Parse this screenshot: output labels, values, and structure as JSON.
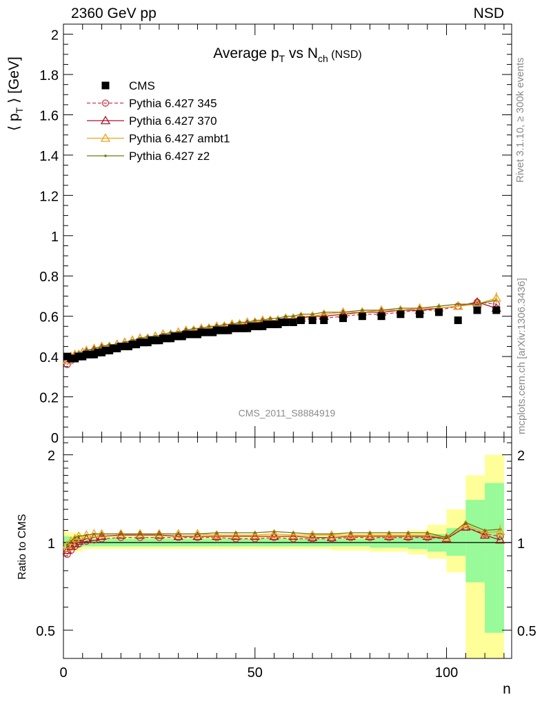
{
  "header": {
    "left": "2360 GeV pp",
    "right": "NSD"
  },
  "side_labels": {
    "rivet": "Rivet 3.1.10, ≥ 300k events",
    "mcplots": "mcplots.cern.ch [arXiv:1306.3436]"
  },
  "watermark": "CMS_2011_S8884919",
  "chart_data": [
    {
      "type": "scatter",
      "title": "Average p_T vs N_ch (NSD)",
      "title_parts": {
        "main": "Average p",
        "sub1": "T",
        "mid": " vs N",
        "sub2": "ch",
        "tail": " (NSD)"
      },
      "ylabel": "⟨ p_T ⟩ [GeV]",
      "ylabel_parts": {
        "pre": "⟨ p",
        "sub": "T",
        "post": " ⟩ [GeV]"
      },
      "xlim": [
        0,
        117
      ],
      "ylim": [
        0,
        2.05
      ],
      "yticks": [
        0,
        0.2,
        0.4,
        0.6,
        0.8,
        1,
        1.2,
        1.4,
        1.6,
        1.8,
        2
      ],
      "ytick_labels": [
        "0",
        "0.2",
        "0.4",
        "0.6",
        "0.8",
        "1",
        "1.2",
        "1.4",
        "1.6",
        "1.8",
        "2"
      ],
      "legend_position": "top-left",
      "series": [
        {
          "name": "CMS",
          "color": "#000000",
          "marker": "square",
          "x": [
            1,
            2,
            3,
            4,
            5,
            6,
            7,
            8,
            9,
            10,
            11,
            12,
            13,
            14,
            15,
            16,
            17,
            18,
            19,
            20,
            21,
            22,
            23,
            24,
            25,
            26,
            27,
            28,
            29,
            30,
            31,
            32,
            33,
            34,
            35,
            36,
            37,
            38,
            39,
            40,
            41,
            42,
            43,
            44,
            45,
            46,
            47,
            48,
            49,
            50,
            51,
            52,
            53,
            54,
            55,
            56,
            57,
            58,
            60,
            62,
            65,
            68,
            73,
            78,
            83,
            88,
            93,
            98,
            103,
            108,
            113
          ],
          "y": [
            0.4,
            0.39,
            0.39,
            0.4,
            0.4,
            0.41,
            0.41,
            0.41,
            0.42,
            0.42,
            0.43,
            0.43,
            0.44,
            0.44,
            0.45,
            0.45,
            0.45,
            0.46,
            0.46,
            0.47,
            0.47,
            0.47,
            0.48,
            0.48,
            0.48,
            0.49,
            0.49,
            0.49,
            0.5,
            0.5,
            0.5,
            0.51,
            0.51,
            0.51,
            0.51,
            0.52,
            0.52,
            0.52,
            0.52,
            0.53,
            0.53,
            0.53,
            0.53,
            0.54,
            0.54,
            0.54,
            0.54,
            0.54,
            0.55,
            0.55,
            0.55,
            0.55,
            0.56,
            0.56,
            0.56,
            0.56,
            0.57,
            0.57,
            0.57,
            0.58,
            0.58,
            0.58,
            0.59,
            0.6,
            0.6,
            0.61,
            0.61,
            0.62,
            0.58,
            0.63,
            0.63
          ]
        },
        {
          "name": "Pythia 6.427 345",
          "color": "#c8364c",
          "marker": "circle",
          "dashed": true,
          "x": [
            1,
            2,
            3,
            4,
            5,
            6,
            8,
            10,
            12,
            14,
            16,
            18,
            20,
            22,
            24,
            26,
            28,
            30,
            32,
            34,
            36,
            38,
            40,
            42,
            44,
            46,
            48,
            50,
            52,
            54,
            56,
            58,
            60,
            62,
            65,
            68,
            73,
            78,
            83,
            88,
            93,
            98,
            103,
            108,
            113
          ],
          "y": [
            0.36,
            0.38,
            0.39,
            0.4,
            0.4,
            0.41,
            0.42,
            0.43,
            0.44,
            0.45,
            0.46,
            0.47,
            0.48,
            0.48,
            0.49,
            0.5,
            0.5,
            0.51,
            0.52,
            0.52,
            0.53,
            0.53,
            0.54,
            0.54,
            0.55,
            0.55,
            0.56,
            0.56,
            0.56,
            0.57,
            0.57,
            0.58,
            0.58,
            0.58,
            0.59,
            0.59,
            0.6,
            0.61,
            0.61,
            0.62,
            0.63,
            0.63,
            0.65,
            0.67,
            0.66
          ]
        },
        {
          "name": "Pythia 6.427 370",
          "color": "#a8162c",
          "marker": "triangle",
          "x": [
            1,
            2,
            3,
            4,
            5,
            6,
            8,
            10,
            12,
            14,
            16,
            18,
            20,
            22,
            24,
            26,
            28,
            30,
            32,
            34,
            36,
            38,
            40,
            42,
            44,
            46,
            48,
            50,
            52,
            54,
            56,
            58,
            60,
            62,
            65,
            68,
            73,
            78,
            83,
            88,
            93,
            98,
            103,
            108,
            113
          ],
          "y": [
            0.38,
            0.39,
            0.4,
            0.41,
            0.42,
            0.42,
            0.43,
            0.44,
            0.45,
            0.46,
            0.47,
            0.48,
            0.49,
            0.49,
            0.5,
            0.51,
            0.51,
            0.52,
            0.52,
            0.53,
            0.53,
            0.54,
            0.54,
            0.55,
            0.55,
            0.56,
            0.56,
            0.57,
            0.57,
            0.57,
            0.58,
            0.58,
            0.59,
            0.59,
            0.6,
            0.6,
            0.61,
            0.62,
            0.62,
            0.63,
            0.63,
            0.64,
            0.65,
            0.67,
            0.64
          ]
        },
        {
          "name": "Pythia 6.427 ambt1",
          "color": "#f0a218",
          "marker": "triangle",
          "x": [
            1,
            2,
            3,
            4,
            5,
            6,
            8,
            10,
            12,
            14,
            16,
            18,
            20,
            22,
            24,
            26,
            28,
            30,
            32,
            34,
            36,
            38,
            40,
            42,
            44,
            46,
            48,
            50,
            52,
            54,
            56,
            58,
            60,
            62,
            65,
            68,
            73,
            78,
            83,
            88,
            93,
            98,
            103,
            108,
            113
          ],
          "y": [
            0.38,
            0.4,
            0.41,
            0.41,
            0.42,
            0.43,
            0.44,
            0.45,
            0.45,
            0.46,
            0.47,
            0.48,
            0.49,
            0.49,
            0.5,
            0.51,
            0.51,
            0.52,
            0.53,
            0.53,
            0.54,
            0.54,
            0.55,
            0.55,
            0.56,
            0.56,
            0.57,
            0.57,
            0.58,
            0.58,
            0.58,
            0.59,
            0.59,
            0.6,
            0.6,
            0.61,
            0.62,
            0.62,
            0.63,
            0.63,
            0.64,
            0.64,
            0.65,
            0.66,
            0.69
          ]
        },
        {
          "name": "Pythia 6.427 z2",
          "color": "#6e7a10",
          "marker": "dot",
          "x": [
            1,
            2,
            3,
            4,
            5,
            6,
            8,
            10,
            12,
            14,
            16,
            18,
            20,
            22,
            24,
            26,
            28,
            30,
            32,
            34,
            36,
            38,
            40,
            42,
            44,
            46,
            48,
            50,
            52,
            54,
            56,
            58,
            60,
            62,
            65,
            68,
            73,
            78,
            83,
            88,
            93,
            98,
            103,
            108,
            113
          ],
          "y": [
            0.39,
            0.4,
            0.41,
            0.42,
            0.42,
            0.43,
            0.44,
            0.45,
            0.46,
            0.46,
            0.47,
            0.48,
            0.49,
            0.5,
            0.5,
            0.51,
            0.52,
            0.52,
            0.53,
            0.54,
            0.54,
            0.55,
            0.55,
            0.56,
            0.56,
            0.57,
            0.57,
            0.58,
            0.58,
            0.59,
            0.59,
            0.6,
            0.6,
            0.61,
            0.61,
            0.62,
            0.62,
            0.63,
            0.63,
            0.64,
            0.64,
            0.65,
            0.66,
            0.66,
            0.68
          ]
        }
      ]
    },
    {
      "type": "line",
      "ylabel": "Ratio to CMS",
      "xlabel": "n",
      "xlim": [
        0,
        117
      ],
      "ylim": [
        0.4,
        2.3
      ],
      "log_y": true,
      "yticks": [
        0.5,
        1,
        2
      ],
      "ytick_labels": [
        "0.5",
        "1",
        "2"
      ],
      "xticks": [
        0,
        50,
        100
      ],
      "xtick_labels": [
        "0",
        "50",
        "100"
      ],
      "bands": {
        "bins": [
          [
            0,
            2
          ],
          [
            2,
            5
          ],
          [
            5,
            10
          ],
          [
            10,
            20
          ],
          [
            20,
            30
          ],
          [
            30,
            40
          ],
          [
            40,
            50
          ],
          [
            50,
            60
          ],
          [
            60,
            70
          ],
          [
            70,
            80
          ],
          [
            80,
            90
          ],
          [
            90,
            95
          ],
          [
            95,
            100
          ],
          [
            100,
            105
          ],
          [
            105,
            110
          ],
          [
            110,
            115
          ]
        ],
        "inner": [
          [
            0.95,
            1.05
          ],
          [
            0.96,
            1.04
          ],
          [
            0.97,
            1.03
          ],
          [
            0.97,
            1.03
          ],
          [
            0.97,
            1.03
          ],
          [
            0.97,
            1.03
          ],
          [
            0.97,
            1.03
          ],
          [
            0.97,
            1.03
          ],
          [
            0.97,
            1.03
          ],
          [
            0.97,
            1.03
          ],
          [
            0.96,
            1.04
          ],
          [
            0.95,
            1.05
          ],
          [
            0.93,
            1.07
          ],
          [
            0.9,
            1.12
          ],
          [
            0.73,
            1.4
          ],
          [
            0.49,
            1.6
          ]
        ],
        "outer": [
          [
            0.92,
            1.09
          ],
          [
            0.93,
            1.08
          ],
          [
            0.95,
            1.06
          ],
          [
            0.95,
            1.06
          ],
          [
            0.95,
            1.06
          ],
          [
            0.95,
            1.06
          ],
          [
            0.95,
            1.06
          ],
          [
            0.95,
            1.06
          ],
          [
            0.95,
            1.06
          ],
          [
            0.94,
            1.07
          ],
          [
            0.93,
            1.08
          ],
          [
            0.91,
            1.1
          ],
          [
            0.88,
            1.15
          ],
          [
            0.79,
            1.3
          ],
          [
            0.4,
            1.7
          ],
          [
            0.4,
            2.0
          ]
        ],
        "inner_color": "#98fa98",
        "outer_color": "#ffff99"
      },
      "series": [
        {
          "name": "Pythia 6.427 345",
          "color": "#c8364c",
          "marker": "circle",
          "dashed": true,
          "x": [
            1,
            2,
            3,
            4,
            6,
            8,
            10,
            15,
            20,
            25,
            30,
            35,
            40,
            45,
            50,
            55,
            60,
            65,
            70,
            75,
            80,
            85,
            90,
            95,
            100,
            105,
            110,
            114
          ],
          "y": [
            0.91,
            0.94,
            0.97,
            0.99,
            1.01,
            1.02,
            1.03,
            1.04,
            1.04,
            1.04,
            1.04,
            1.04,
            1.04,
            1.03,
            1.03,
            1.04,
            1.03,
            1.03,
            1.03,
            1.04,
            1.04,
            1.04,
            1.04,
            1.04,
            1.03,
            1.13,
            1.07,
            1.05
          ]
        },
        {
          "name": "Pythia 6.427 370",
          "color": "#a8162c",
          "marker": "triangle",
          "x": [
            1,
            2,
            3,
            4,
            6,
            8,
            10,
            15,
            20,
            25,
            30,
            35,
            40,
            45,
            50,
            55,
            60,
            65,
            70,
            75,
            80,
            85,
            90,
            95,
            100,
            105,
            110,
            114
          ],
          "y": [
            0.94,
            0.97,
            0.99,
            1.01,
            1.03,
            1.04,
            1.05,
            1.06,
            1.06,
            1.06,
            1.05,
            1.05,
            1.05,
            1.05,
            1.05,
            1.05,
            1.05,
            1.04,
            1.04,
            1.05,
            1.05,
            1.05,
            1.05,
            1.05,
            1.03,
            1.13,
            1.06,
            1.02
          ]
        },
        {
          "name": "Pythia 6.427 ambt1",
          "color": "#f0a218",
          "marker": "triangle",
          "x": [
            1,
            2,
            3,
            4,
            6,
            8,
            10,
            15,
            20,
            25,
            30,
            35,
            40,
            45,
            50,
            55,
            60,
            65,
            70,
            75,
            80,
            85,
            90,
            95,
            100,
            105,
            110,
            114
          ],
          "y": [
            0.98,
            1.01,
            1.03,
            1.05,
            1.06,
            1.07,
            1.07,
            1.07,
            1.07,
            1.07,
            1.07,
            1.07,
            1.06,
            1.06,
            1.06,
            1.07,
            1.06,
            1.06,
            1.06,
            1.06,
            1.06,
            1.06,
            1.06,
            1.06,
            1.04,
            1.15,
            1.08,
            1.09
          ]
        },
        {
          "name": "Pythia 6.427 z2",
          "color": "#6e7a10",
          "marker": "dot",
          "x": [
            1,
            2,
            3,
            4,
            6,
            8,
            10,
            15,
            20,
            25,
            30,
            35,
            40,
            45,
            50,
            55,
            60,
            65,
            70,
            75,
            80,
            85,
            90,
            95,
            100,
            105,
            110,
            114
          ],
          "y": [
            0.98,
            1.01,
            1.04,
            1.05,
            1.06,
            1.07,
            1.07,
            1.07,
            1.07,
            1.07,
            1.07,
            1.07,
            1.08,
            1.08,
            1.08,
            1.09,
            1.08,
            1.07,
            1.07,
            1.08,
            1.08,
            1.08,
            1.08,
            1.08,
            1.04,
            1.17,
            1.1,
            1.11
          ]
        }
      ]
    }
  ]
}
